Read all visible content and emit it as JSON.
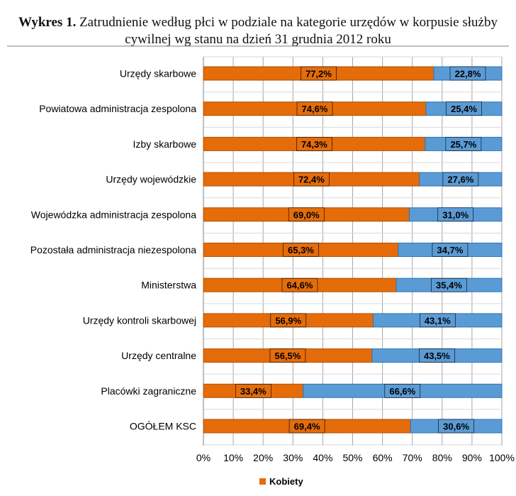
{
  "title": {
    "bold": "Wykres 1.",
    "line1": "Zatrudnienie według płci w podziale na kategorie urzędów w korpusie służby",
    "line2": "cywilnej wg stanu na dzień 31 grudnia 2012 roku"
  },
  "chart_data": {
    "type": "bar",
    "orientation": "horizontal",
    "stacked": true,
    "categories": [
      "Urzędy skarbowe",
      "Powiatowa administracja zespolona",
      "Izby skarbowe",
      "Urzędy wojewódzkie",
      "Wojewódzka administracja zespolona",
      "Pozostała administracja niezespolona",
      "Ministerstwa",
      "Urzędy kontroli skarbowej",
      "Urzędy centralne",
      "Placówki zagraniczne",
      "OGÓŁEM KSC"
    ],
    "series": [
      {
        "name": "Kobiety",
        "color": "#e46c0a",
        "values": [
          77.2,
          74.6,
          74.3,
          72.4,
          69.0,
          65.3,
          64.6,
          56.9,
          56.5,
          33.4,
          69.4
        ],
        "labels": [
          "77,2%",
          "74,6%",
          "74,3%",
          "72,4%",
          "69,0%",
          "65,3%",
          "64,6%",
          "56,9%",
          "56,5%",
          "33,4%",
          "69,4%"
        ]
      },
      {
        "color": "#5b9bd5",
        "values": [
          22.8,
          25.4,
          25.7,
          27.6,
          31.0,
          34.7,
          35.4,
          43.1,
          43.5,
          66.6,
          30.6
        ],
        "labels": [
          "22,8%",
          "25,4%",
          "25,7%",
          "27,6%",
          "31,0%",
          "34,7%",
          "35,4%",
          "43,1%",
          "43,5%",
          "66,6%",
          "30,6%"
        ]
      }
    ],
    "xlim": [
      0,
      100
    ],
    "x_ticks": [
      "0%",
      "10%",
      "20%",
      "30%",
      "40%",
      "50%",
      "60%",
      "70%",
      "80%",
      "90%",
      "100%"
    ],
    "grid": true,
    "legend": {
      "position": "bottom",
      "entries": [
        "Kobiety"
      ]
    }
  }
}
